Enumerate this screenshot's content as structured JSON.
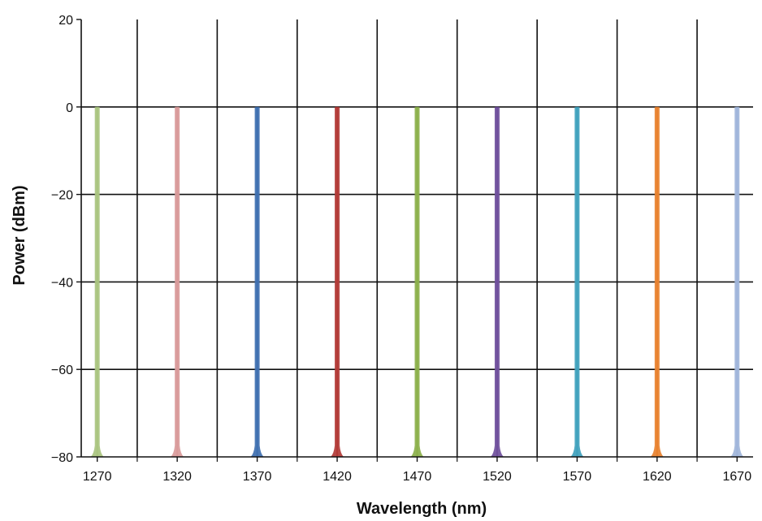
{
  "chart_data": {
    "type": "line",
    "title": "",
    "xlabel": "Wavelength (nm)",
    "ylabel": "Power (dBm)",
    "xlim": [
      1260,
      1680
    ],
    "ylim": [
      -80,
      20
    ],
    "x_ticks": [
      1270,
      1320,
      1370,
      1420,
      1470,
      1520,
      1570,
      1620,
      1670
    ],
    "y_ticks": [
      20,
      0,
      -20,
      -40,
      -60,
      -80
    ],
    "x_tick_labels": [
      "1270",
      "1320",
      "1370",
      "1420",
      "1470",
      "1520",
      "1570",
      "1620",
      "1670"
    ],
    "y_tick_labels": [
      "20",
      "0",
      "−20",
      "−40",
      "−60",
      "−80"
    ],
    "grid": true,
    "legend": "none",
    "series": [
      {
        "x": 1270,
        "peak": 0,
        "floor": -80,
        "color": "#a9c47f"
      },
      {
        "x": 1320,
        "peak": 0,
        "floor": -80,
        "color": "#d99a9a"
      },
      {
        "x": 1370,
        "peak": 0,
        "floor": -80,
        "color": "#3e6fb0"
      },
      {
        "x": 1420,
        "peak": 0,
        "floor": -80,
        "color": "#b23a36"
      },
      {
        "x": 1470,
        "peak": 0,
        "floor": -80,
        "color": "#8bb04a"
      },
      {
        "x": 1520,
        "peak": 0,
        "floor": -80,
        "color": "#6f4f9c"
      },
      {
        "x": 1570,
        "peak": 0,
        "floor": -80,
        "color": "#3fa1bd"
      },
      {
        "x": 1620,
        "peak": 0,
        "floor": -80,
        "color": "#e8812e"
      },
      {
        "x": 1670,
        "peak": 0,
        "floor": -80,
        "color": "#9fb5da"
      }
    ]
  }
}
